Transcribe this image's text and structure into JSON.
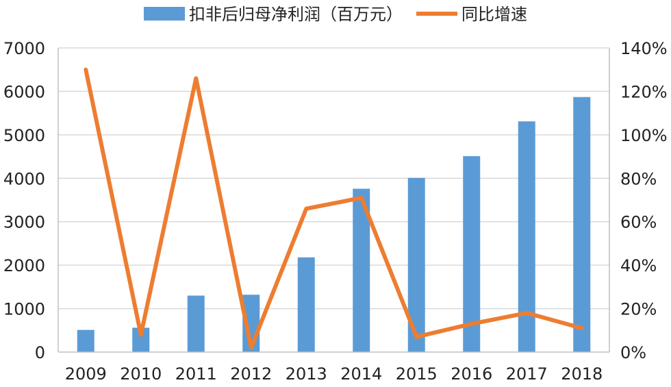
{
  "chart_data": {
    "type": "bar+line",
    "categories": [
      "2009",
      "2010",
      "2011",
      "2012",
      "2013",
      "2014",
      "2015",
      "2016",
      "2017",
      "2018"
    ],
    "series": [
      {
        "name": "扣非后归母净利润（百万元）",
        "type": "bar",
        "axis": "left",
        "color": "#5B9BD5",
        "values": [
          510,
          560,
          1300,
          1320,
          2180,
          3760,
          4010,
          4510,
          5310,
          5870
        ]
      },
      {
        "name": "同比增速",
        "type": "line",
        "axis": "right",
        "color": "#ED7D31",
        "values": [
          1.3,
          0.08,
          1.26,
          0.02,
          0.66,
          0.71,
          0.07,
          0.13,
          0.18,
          0.11
        ]
      }
    ],
    "y_left": {
      "min": 0,
      "max": 7000,
      "ticks": [
        "0",
        "1000",
        "2000",
        "3000",
        "4000",
        "5000",
        "6000",
        "7000"
      ]
    },
    "y_right": {
      "min": 0,
      "max": 1.4,
      "ticks": [
        "0%",
        "20%",
        "40%",
        "60%",
        "80%",
        "100%",
        "120%",
        "140%"
      ]
    },
    "grid": true,
    "legend_position": "top"
  }
}
